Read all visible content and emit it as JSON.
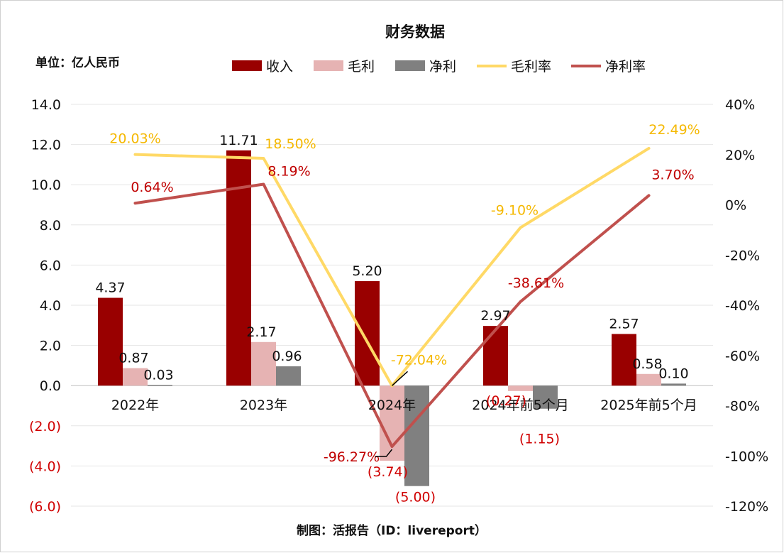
{
  "title": "财务数据",
  "unit_label": "单位：亿人民币",
  "source_label": "制图：活报告（ID：livereport）",
  "colors": {
    "revenue": "#990000",
    "gross_profit": "#e6b3b3",
    "net_profit": "#808080",
    "gross_margin": "#ffd966",
    "net_margin": "#c0504d",
    "negative_text": "#d00000"
  },
  "chart_data": {
    "type": "bar",
    "title": "财务数据",
    "xlabel": "",
    "ylabel": "单位：亿人民币",
    "categories": [
      "2022年",
      "2023年",
      "2024年",
      "2024年前5个月",
      "2025年前5个月"
    ],
    "series": [
      {
        "name": "收入",
        "kind": "bar",
        "axis": "left",
        "values": [
          4.37,
          11.71,
          5.2,
          2.97,
          2.57
        ],
        "labels": [
          "4.37",
          "11.71",
          "5.20",
          "2.97",
          "2.57"
        ]
      },
      {
        "name": "毛利",
        "kind": "bar",
        "axis": "left",
        "values": [
          0.87,
          2.17,
          -3.74,
          -0.27,
          0.58
        ],
        "labels": [
          "0.87",
          "2.17",
          "(3.74)",
          "(0.27)",
          "0.58"
        ]
      },
      {
        "name": "净利",
        "kind": "bar",
        "axis": "left",
        "values": [
          0.03,
          0.96,
          -5.0,
          -1.15,
          0.1
        ],
        "labels": [
          "0.03",
          "0.96",
          "(5.00)",
          "(1.15)",
          "0.10"
        ]
      },
      {
        "name": "毛利率",
        "kind": "line",
        "axis": "right",
        "values": [
          20.03,
          18.5,
          -72.04,
          -9.1,
          22.49
        ],
        "labels": [
          "20.03%",
          "18.50%",
          "-72.04%",
          "-9.10%",
          "22.49%"
        ]
      },
      {
        "name": "净利率",
        "kind": "line",
        "axis": "right",
        "values": [
          0.64,
          8.19,
          -96.27,
          -38.61,
          3.7
        ],
        "labels": [
          "0.64%",
          "8.19%",
          "-96.27%",
          "-38.61%",
          "3.70%"
        ]
      }
    ],
    "ylim": [
      -6,
      14
    ],
    "y_ticks": [
      14,
      12,
      10,
      8,
      6,
      4,
      2,
      0,
      -2,
      -4,
      -6
    ],
    "y_tick_labels": [
      "14.0",
      "12.0",
      "10.0",
      "8.0",
      "6.0",
      "4.0",
      "2.0",
      "0.0",
      "(2.0)",
      "(4.0)",
      "(6.0)"
    ],
    "y2lim": [
      -120,
      40
    ],
    "y2_ticks": [
      40,
      20,
      0,
      -20,
      -40,
      -60,
      -80,
      -100,
      -120
    ],
    "y2_tick_labels": [
      "40%",
      "20%",
      "0%",
      "-20%",
      "-40%",
      "-60%",
      "-80%",
      "-100%",
      "-120%"
    ],
    "legend": [
      "收入",
      "毛利",
      "净利",
      "毛利率",
      "净利率"
    ],
    "legend_position": "top",
    "grid": true
  }
}
